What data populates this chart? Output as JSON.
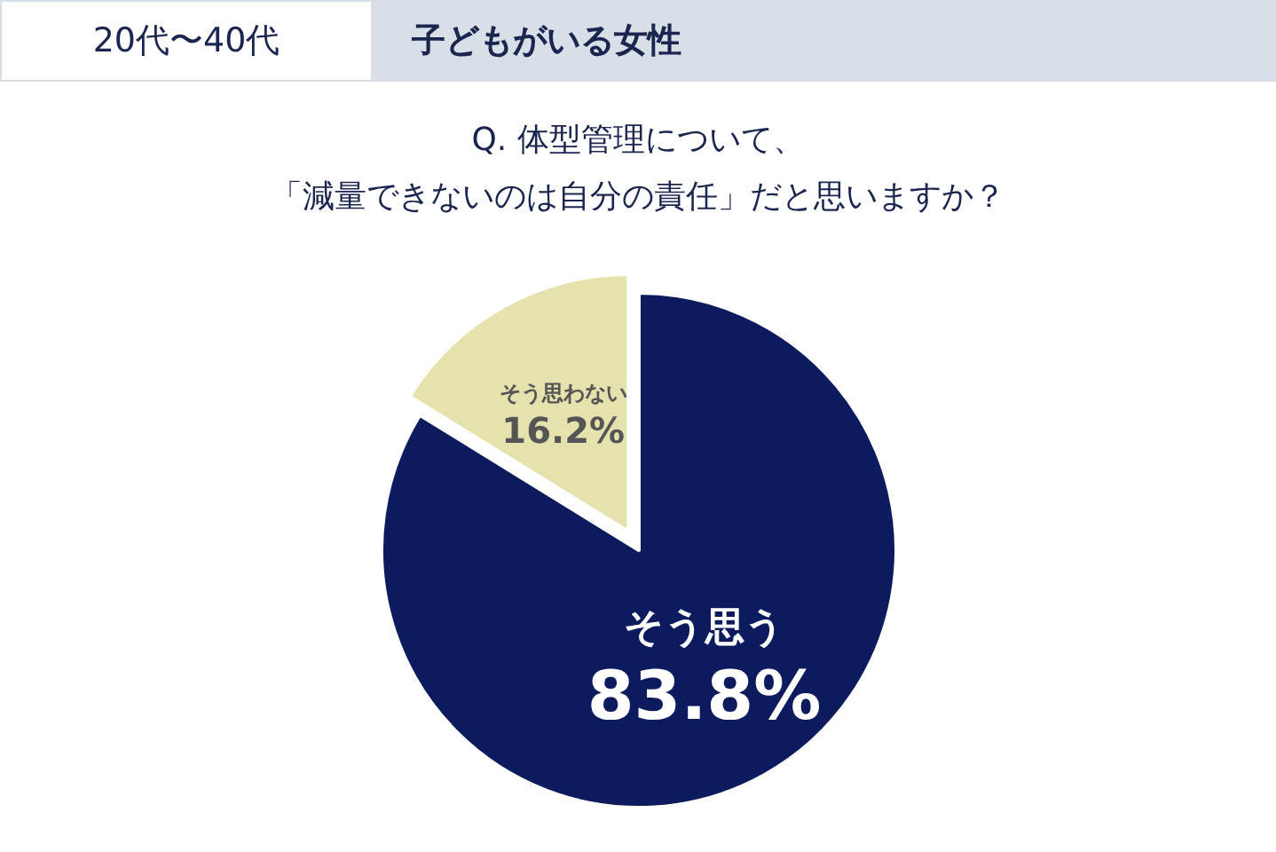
{
  "chart_data": {
    "type": "pie",
    "title": "Q. 体型管理について、",
    "subtitle": "「減量できないのは自分の責任」だと思いますか？",
    "annotations": [
      "20代〜40代",
      "子どもがいる女性"
    ],
    "categories": [
      "そう思う",
      "そう思わない"
    ],
    "values": [
      83.8,
      16.2
    ],
    "value_labels": [
      "83.8%",
      "16.2%"
    ],
    "colors": [
      "#0c1a5e",
      "#e6e2ad"
    ],
    "legend": false
  }
}
